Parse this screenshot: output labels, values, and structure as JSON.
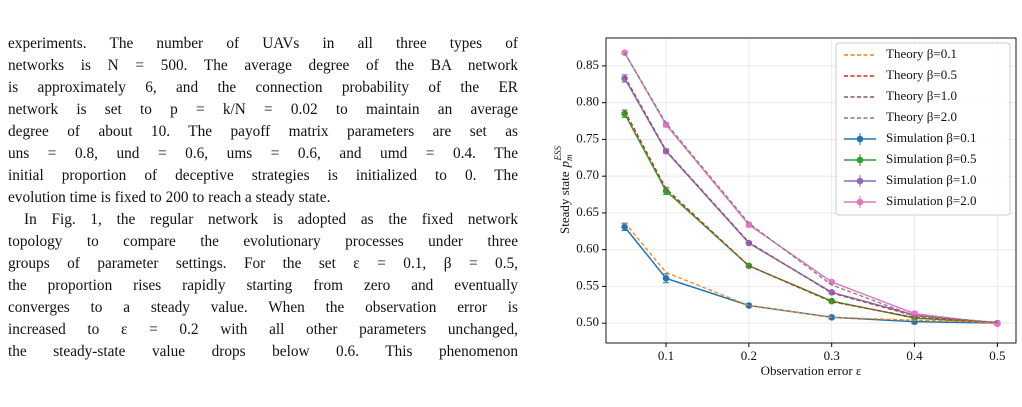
{
  "text": {
    "paragraphs": [
      [
        "experiments. The number of UAVs in all three types of",
        "networks is N = 500. The average degree of the BA network",
        "is approximately 6, and the connection probability of the ER",
        "network is set to p = k/N = 0.02 to maintain an average",
        "degree of about 10. The payoff matrix parameters are set as",
        "uns = 0.8, und = 0.6, ums = 0.6, and umd = 0.4. The",
        "initial proportion of deceptive strategies is initialized to 0. The",
        "evolution time is fixed to 200 to reach a steady state."
      ],
      [
        "In Fig. 1, the regular network is adopted as the fixed network",
        "topology to compare the evolutionary processes under three",
        "groups of parameter settings. For the set ε = 0.1, β = 0.5,",
        "the proportion rises rapidly starting from zero and eventually",
        "converges to a steady value. When the observation error is",
        "increased to ε = 0.2 with all other parameters unchanged,",
        "the steady-state value drops below 0.6. This phenomenon"
      ]
    ]
  },
  "chart_data": {
    "type": "line",
    "x_label": "Observation error ε",
    "y_label": {
      "text": "Steady state",
      "symbol": "p",
      "sub": "m",
      "sup": "ESS"
    },
    "x": [
      0.05,
      0.1,
      0.2,
      0.3,
      0.4,
      0.5
    ],
    "xlim": [
      0.0275,
      0.5225
    ],
    "xticks": [
      0.1,
      0.2,
      0.3,
      0.4,
      0.5
    ],
    "ylim": [
      0.473,
      0.888
    ],
    "yticks": [
      {
        "value": 0.5,
        "label": "0.50"
      },
      0.55,
      {
        "value": 0.6,
        "label": "0.60"
      },
      0.65,
      {
        "value": 0.7,
        "label": "0.70"
      },
      0.75,
      {
        "value": 0.8,
        "label": "0.80"
      },
      0.85
    ],
    "grid": true,
    "legend": "upper right",
    "series": [
      {
        "name": "Theory β=0.1",
        "color": "#ff7f0e",
        "style": "dashed",
        "values": [
          0.637,
          0.569,
          0.524,
          0.508,
          0.504,
          0.501
        ]
      },
      {
        "name": "Theory β=0.5",
        "color": "#d62728",
        "style": "dashed",
        "values": [
          0.789,
          0.683,
          0.578,
          0.529,
          0.508,
          0.501
        ]
      },
      {
        "name": "Theory β=1.0",
        "color": "#8c564b",
        "style": "dashed",
        "values": [
          0.836,
          0.735,
          0.61,
          0.541,
          0.51,
          0.501
        ]
      },
      {
        "name": "Theory β=2.0",
        "color": "#7f7f7f",
        "style": "dashed",
        "values": [
          0.868,
          0.772,
          0.636,
          0.552,
          0.51,
          0.501
        ]
      },
      {
        "name": "Simulation β=0.1",
        "color": "#1f77b4",
        "style": "solid",
        "values": [
          0.631,
          0.561,
          0.524,
          0.508,
          0.502,
          0.5
        ],
        "errors": [
          0.005,
          0.006,
          0.002,
          0.002,
          0.003,
          0.002
        ]
      },
      {
        "name": "Simulation β=0.5",
        "color": "#2ca02c",
        "style": "solid",
        "values": [
          0.785,
          0.68,
          0.578,
          0.53,
          0.507,
          0.5
        ],
        "errors": [
          0.005,
          0.005,
          0.002,
          0.002,
          0.003,
          0.002
        ]
      },
      {
        "name": "Simulation β=1.0",
        "color": "#9467bd",
        "style": "solid",
        "values": [
          0.833,
          0.734,
          0.609,
          0.542,
          0.511,
          0.5
        ],
        "errors": [
          0.005,
          0.003,
          0.002,
          0.002,
          0.003,
          0.002
        ]
      },
      {
        "name": "Simulation β=2.0",
        "color": "#e377c2",
        "style": "solid",
        "values": [
          0.868,
          0.77,
          0.634,
          0.556,
          0.513,
          0.499
        ],
        "errors": [
          0.002,
          0.003,
          0.003,
          0.002,
          0.003,
          0.002
        ]
      }
    ]
  }
}
